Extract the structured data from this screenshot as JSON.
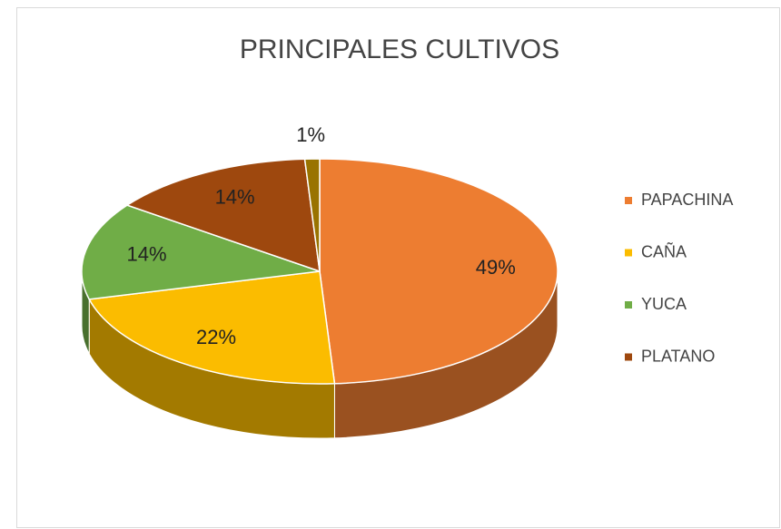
{
  "chart_data": {
    "type": "pie3d",
    "title": "PRINCIPALES CULTIVOS",
    "categories": [
      "PAPACHINA",
      "CAÑA",
      "YUCA",
      "PLATANO",
      null
    ],
    "values": [
      49,
      22,
      14,
      14,
      1
    ],
    "value_labels": [
      "49%",
      "22%",
      "14%",
      "14%",
      "1%"
    ],
    "colors": [
      "#ed7d31",
      "#fbbc00",
      "#70ad47",
      "#9e480e",
      "#997300"
    ],
    "legend": "right"
  }
}
